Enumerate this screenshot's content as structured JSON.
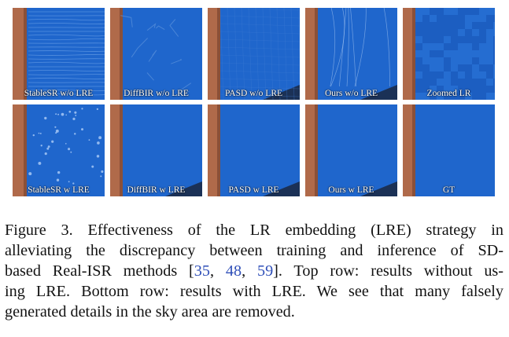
{
  "figure": {
    "rows": [
      {
        "panels": [
          {
            "label": "StableSR w/o LRE",
            "artifact": "streaks"
          },
          {
            "label": "DiffBIR w/o LRE",
            "artifact": "cracks"
          },
          {
            "label": "PASD w/o LRE",
            "artifact": "grid"
          },
          {
            "label": "Ours w/o LRE",
            "artifact": "branches"
          },
          {
            "label": "Zoomed LR",
            "artifact": "pixelated"
          }
        ]
      },
      {
        "panels": [
          {
            "label": "StableSR w LRE",
            "artifact": "dots"
          },
          {
            "label": "DiffBIR w LRE",
            "artifact": "clean"
          },
          {
            "label": "PASD w LRE",
            "artifact": "clean"
          },
          {
            "label": "Ours w LRE",
            "artifact": "clean"
          },
          {
            "label": "GT",
            "artifact": "clean"
          }
        ]
      }
    ],
    "colors": {
      "sky": "#1f66cc",
      "pole": "#b06a4a",
      "label_text": "#ffffff",
      "citation": "#2f4fb8"
    }
  },
  "caption": {
    "line1": "Figure 3.  Effectiveness of the LR embedding (LRE) strategy in",
    "line2": "alleviating the discrepancy between training and inference of SD-",
    "line3_prefix": "based Real-ISR methods [",
    "cite1": "35",
    "sep1": ", ",
    "cite2": "48",
    "sep2": ", ",
    "cite3": "59",
    "line3_suffix": "]. Top row: results without us-",
    "line4": "ing LRE. Bottom row: results with LRE. We see that many falsely",
    "line5": "generated details in the sky area are removed."
  }
}
